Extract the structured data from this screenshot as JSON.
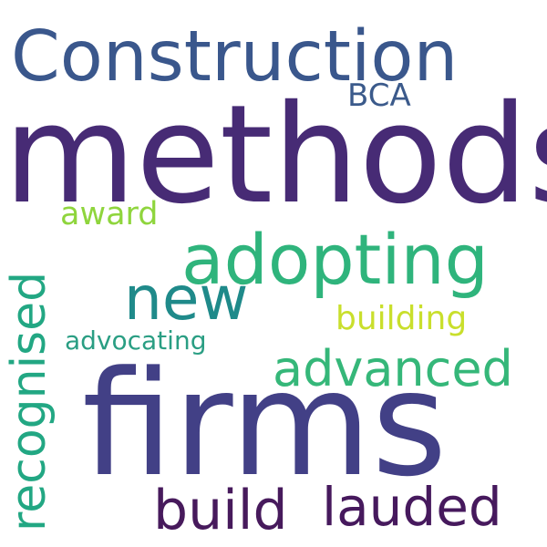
{
  "words": [
    {
      "id": "construction",
      "text": "Construction",
      "color": "#3a578c"
    },
    {
      "id": "methods",
      "text": "methods",
      "color": "#472b75"
    },
    {
      "id": "bca",
      "text": "BCA",
      "color": "#3b5a8b"
    },
    {
      "id": "adopting",
      "text": "adopting",
      "color": "#2fb47c"
    },
    {
      "id": "award",
      "text": "award",
      "color": "#8fd53d"
    },
    {
      "id": "new",
      "text": "new",
      "color": "#1f8a8a"
    },
    {
      "id": "building",
      "text": "building",
      "color": "#c9df2c"
    },
    {
      "id": "advocating",
      "text": "advocating",
      "color": "#2a9e83"
    },
    {
      "id": "advanced",
      "text": "advanced",
      "color": "#35b779"
    },
    {
      "id": "firms",
      "text": "firms",
      "color": "#424086"
    },
    {
      "id": "build",
      "text": "build",
      "color": "#471a5c"
    },
    {
      "id": "lauded",
      "text": "lauded",
      "color": "#46195d"
    },
    {
      "id": "recognised",
      "text": "recognised",
      "color": "#22a783"
    }
  ]
}
